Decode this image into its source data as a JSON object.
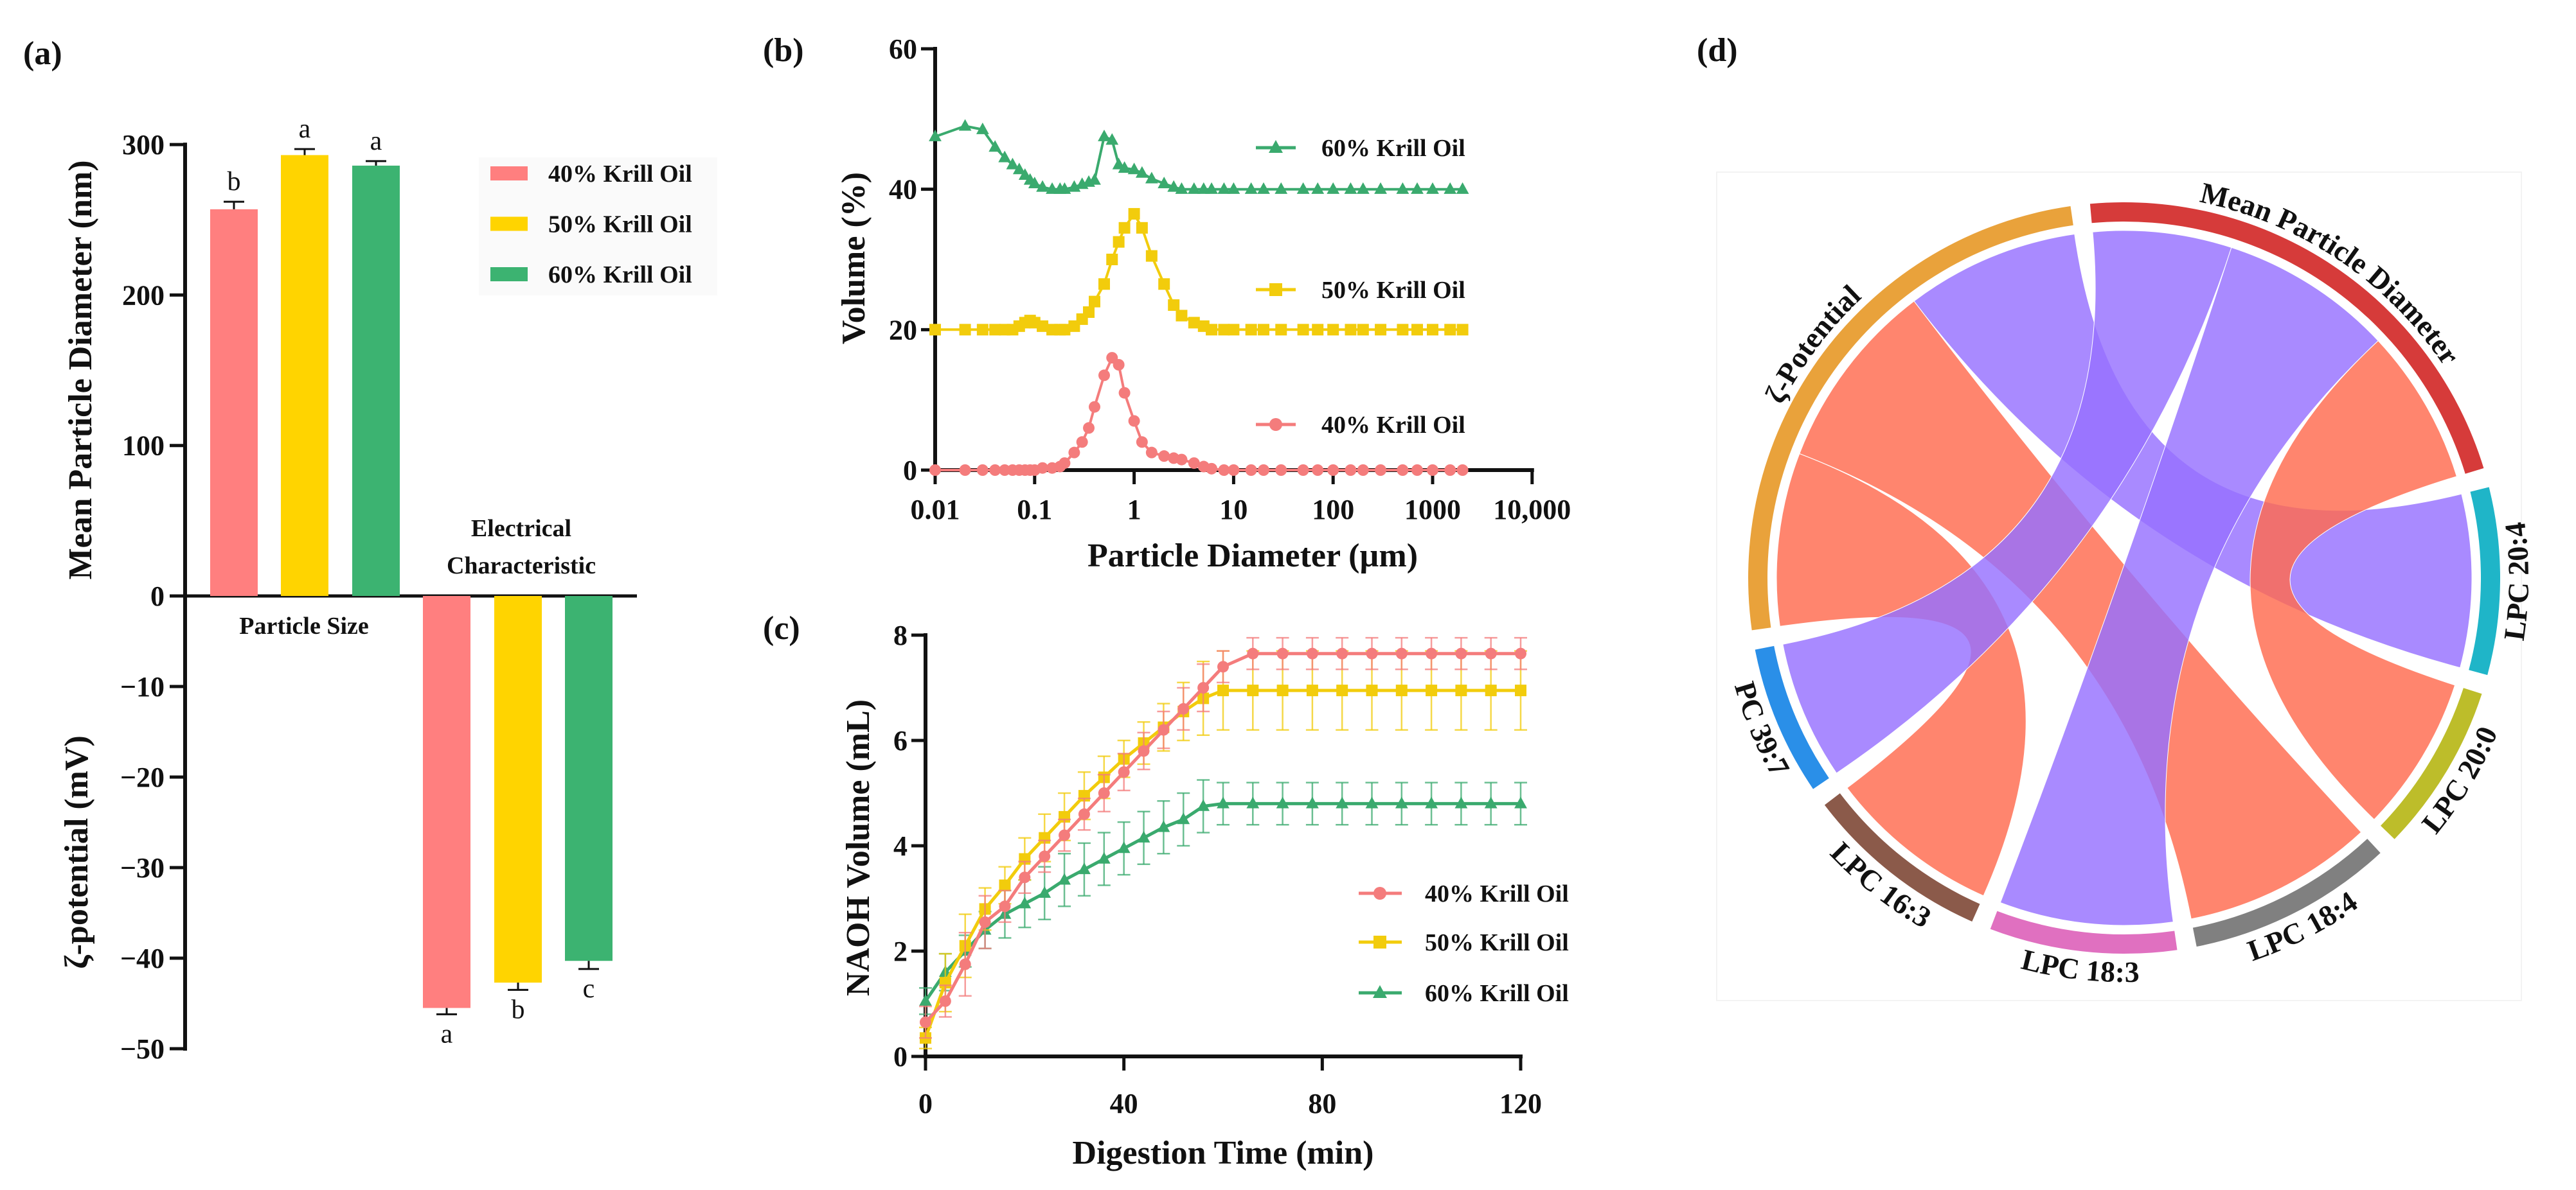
{
  "panel_labels": {
    "a": "(a)",
    "b": "(b)",
    "c": "(c)",
    "d": "(d)"
  },
  "colors": {
    "c40": "#FF7F7F",
    "c50": "#FFD400",
    "c60": "#3CB371",
    "line40": "#F47C7C",
    "line50": "#F2CC0C",
    "line60": "#3AAA6E",
    "positive": "#FF6A4E",
    "negative": "#9670FF"
  },
  "chart_data": [
    {
      "id": "a",
      "type": "bar",
      "legend": [
        "40% Krill Oil",
        "50% Krill Oil",
        "60% Krill Oil"
      ],
      "legend_position": "top-right",
      "groups": [
        {
          "name": "Particle Size",
          "ylabel": "Mean Particle Diameter (nm)",
          "values": [
            257,
            293,
            286
          ],
          "errors": [
            5,
            4,
            3
          ],
          "letters": [
            "b",
            "a",
            "a"
          ],
          "yticks": [
            "0",
            "100",
            "200",
            "300"
          ],
          "ylim": [
            0,
            300
          ]
        },
        {
          "name": "Electrical Characteristic",
          "name_lines": [
            "Electrical",
            "Characteristic"
          ],
          "ylabel": "ζ-potential (mV)",
          "values": [
            -45.5,
            -42.7,
            -40.3
          ],
          "errors": [
            0.7,
            0.8,
            0.9
          ],
          "letters": [
            "a",
            "b",
            "c"
          ],
          "yticks": [
            "−10",
            "−20",
            "−30",
            "−40",
            "−50"
          ],
          "ylim": [
            -50,
            0
          ]
        }
      ]
    },
    {
      "id": "b",
      "type": "line",
      "xscale": "log",
      "xlabel": "Particle Diameter (µm)",
      "ylabel": "Volume (%)",
      "xticks": [
        "0.01",
        "0.1",
        "1",
        "10",
        "100",
        "1000",
        "10,000"
      ],
      "yticks": [
        "0",
        "20",
        "40",
        "60"
      ],
      "xlim": [
        0.01,
        10000
      ],
      "ylim": [
        0,
        60
      ],
      "x": [
        0.01,
        0.02,
        0.03,
        0.04,
        0.05,
        0.06,
        0.07,
        0.08,
        0.09,
        0.1,
        0.12,
        0.15,
        0.18,
        0.2,
        0.25,
        0.3,
        0.35,
        0.4,
        0.5,
        0.6,
        0.7,
        0.8,
        1,
        1.2,
        1.5,
        2,
        2.5,
        3,
        4,
        5,
        6,
        8,
        10,
        15,
        20,
        30,
        50,
        70,
        100,
        150,
        200,
        300,
        500,
        700,
        1000,
        1500,
        2000
      ],
      "series": [
        {
          "name": "60% Krill Oil",
          "marker": "triangle",
          "values": [
            47.5,
            49,
            48.5,
            46,
            44.5,
            43.5,
            42.8,
            42,
            41.3,
            40.8,
            40.3,
            40,
            40,
            40,
            40.3,
            40.7,
            41,
            41.3,
            47.5,
            47,
            43.5,
            43,
            42.8,
            42.3,
            41.5,
            40.8,
            40.3,
            40,
            40,
            40,
            40,
            40,
            40,
            40,
            40,
            40,
            40,
            40,
            40,
            40,
            40,
            40,
            40,
            40,
            40,
            40,
            40
          ]
        },
        {
          "name": "50% Krill Oil",
          "marker": "square",
          "values": [
            20,
            20,
            20,
            20,
            20,
            20,
            20.5,
            21,
            21.3,
            21,
            20.5,
            20,
            20,
            20,
            20.5,
            21.5,
            22.5,
            24,
            26.5,
            30,
            32.5,
            34.5,
            36.5,
            34.5,
            30.5,
            26.5,
            23.5,
            22,
            21,
            20.5,
            20,
            20,
            20,
            20,
            20,
            20,
            20,
            20,
            20,
            20,
            20,
            20,
            20,
            20,
            20,
            20,
            20
          ]
        },
        {
          "name": "40% Krill Oil",
          "marker": "circle",
          "values": [
            0,
            0,
            0,
            0,
            0,
            0,
            0,
            0,
            0,
            0,
            0.3,
            0.3,
            0.5,
            1,
            2.5,
            4,
            6,
            9,
            13.5,
            16,
            15,
            11,
            7,
            4,
            2.5,
            2,
            1.7,
            1.5,
            1,
            0.5,
            0.2,
            0,
            0,
            0,
            0,
            0,
            0,
            0,
            0,
            0,
            0,
            0,
            0,
            0,
            0,
            0,
            0
          ]
        }
      ]
    },
    {
      "id": "c",
      "type": "line",
      "xlabel": "Digestion Time (min)",
      "ylabel": "NAOH Volume (mL)",
      "xticks": [
        "0",
        "40",
        "80",
        "120"
      ],
      "yticks": [
        "0",
        "2",
        "4",
        "6",
        "8"
      ],
      "xlim": [
        0,
        120
      ],
      "ylim": [
        0,
        8
      ],
      "legend_position": "bottom-right",
      "x": [
        0,
        4,
        8,
        12,
        16,
        20,
        24,
        28,
        32,
        36,
        40,
        44,
        48,
        52,
        56,
        60,
        66,
        72,
        78,
        84,
        90,
        96,
        102,
        108,
        114,
        120
      ],
      "series": [
        {
          "name": "40% Krill Oil",
          "marker": "circle",
          "values": [
            0.65,
            1.05,
            1.75,
            2.55,
            2.85,
            3.4,
            3.8,
            4.2,
            4.6,
            5.0,
            5.4,
            5.8,
            6.2,
            6.6,
            7.0,
            7.4,
            7.65,
            7.65,
            7.65,
            7.65,
            7.65,
            7.65,
            7.65,
            7.65,
            7.65,
            7.65
          ],
          "errors": [
            0.3,
            0.3,
            0.6,
            0.5,
            0.3,
            0.3,
            0.3,
            0.3,
            0.3,
            0.35,
            0.35,
            0.35,
            0.35,
            0.4,
            0.45,
            0.3,
            0.3,
            0.3,
            0.3,
            0.3,
            0.3,
            0.3,
            0.3,
            0.3,
            0.3,
            0.3
          ]
        },
        {
          "name": "50% Krill Oil",
          "marker": "square",
          "values": [
            0.35,
            1.4,
            2.1,
            2.8,
            3.25,
            3.75,
            4.15,
            4.55,
            4.95,
            5.3,
            5.65,
            5.95,
            6.25,
            6.55,
            6.8,
            6.95,
            6.95,
            6.95,
            6.95,
            6.95,
            6.95,
            6.95,
            6.95,
            6.95,
            6.95,
            6.95
          ],
          "errors": [
            0.2,
            0.55,
            0.6,
            0.4,
            0.35,
            0.4,
            0.45,
            0.45,
            0.45,
            0.4,
            0.35,
            0.4,
            0.45,
            0.55,
            0.7,
            0.75,
            0.75,
            0.75,
            0.75,
            0.75,
            0.75,
            0.75,
            0.75,
            0.75,
            0.75,
            0.75
          ]
        },
        {
          "name": "60% Krill Oil",
          "marker": "triangle",
          "values": [
            1.05,
            1.6,
            2.0,
            2.4,
            2.7,
            2.9,
            3.1,
            3.35,
            3.55,
            3.75,
            3.95,
            4.15,
            4.35,
            4.5,
            4.75,
            4.8,
            4.8,
            4.8,
            4.8,
            4.8,
            4.8,
            4.8,
            4.8,
            4.8,
            4.8,
            4.8
          ],
          "errors": [
            0.25,
            0.35,
            0.3,
            0.35,
            0.45,
            0.45,
            0.5,
            0.5,
            0.5,
            0.5,
            0.5,
            0.5,
            0.5,
            0.5,
            0.5,
            0.4,
            0.4,
            0.4,
            0.4,
            0.4,
            0.4,
            0.4,
            0.4,
            0.4,
            0.4,
            0.4
          ]
        }
      ]
    },
    {
      "id": "d",
      "type": "chord",
      "sectors": [
        {
          "name": "ζ-Potential",
          "color": "#E9A23B"
        },
        {
          "name": "Mean Particle Diameter",
          "color": "#D63B3A"
        },
        {
          "name": "LPC 20:4",
          "color": "#1FB5C8"
        },
        {
          "name": "LPC 20:0",
          "color": "#BDBD2A"
        },
        {
          "name": "LPC 18:4",
          "color": "#808080"
        },
        {
          "name": "LPC 18:3",
          "color": "#E070C0"
        },
        {
          "name": "LPC 16:3",
          "color": "#8B5A4A"
        },
        {
          "name": "PC 39:7",
          "color": "#2A8FE8"
        }
      ],
      "links": [
        {
          "source": "ζ-Potential",
          "target": "LPC 16:3",
          "value": 1.0,
          "sign": "positive"
        },
        {
          "source": "ζ-Potential",
          "target": "LPC 18:4",
          "value": 1.1,
          "sign": "positive"
        },
        {
          "source": "ζ-Potential",
          "target": "LPC 20:4",
          "value": 1.0,
          "sign": "negative"
        },
        {
          "source": "Mean Particle Diameter",
          "target": "PC 39:7",
          "value": 0.8,
          "sign": "negative"
        },
        {
          "source": "Mean Particle Diameter",
          "target": "LPC 18:3",
          "value": 1.0,
          "sign": "negative"
        },
        {
          "source": "Mean Particle Diameter",
          "target": "LPC 20:0",
          "value": 0.9,
          "sign": "positive"
        }
      ]
    }
  ]
}
